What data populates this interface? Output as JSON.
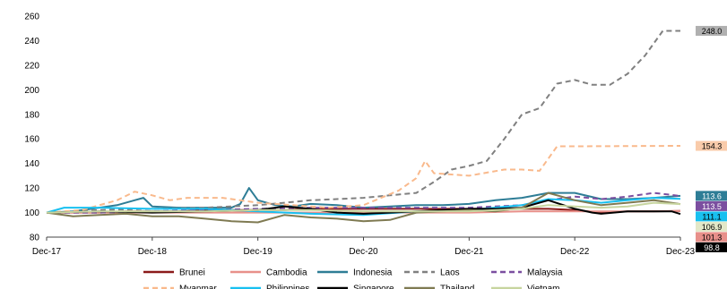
{
  "chart_data": {
    "type": "line",
    "x_ticks": [
      "Dec-17",
      "Dec-18",
      "Dec-19",
      "Dec-20",
      "Dec-21",
      "Dec-22",
      "Dec-23"
    ],
    "ylim": [
      80,
      260
    ],
    "y_ticks": [
      80,
      100,
      120,
      140,
      160,
      180,
      200,
      220,
      240,
      260
    ],
    "grid": false,
    "legend_position": "bottom",
    "series": [
      {
        "name": "Brunei",
        "color": "#8B1A1A",
        "dash": false,
        "x": [
          0,
          3,
          6,
          9,
          12,
          15,
          18,
          21,
          24,
          27,
          30,
          33,
          36,
          39,
          42,
          45,
          48,
          51,
          54,
          57,
          60,
          63,
          66,
          69,
          72
        ],
        "y": [
          100,
          100,
          100,
          101,
          101,
          101,
          102,
          102,
          102,
          102,
          103,
          103,
          103,
          103,
          103,
          103,
          103,
          103,
          103,
          103,
          102,
          100,
          101,
          101,
          101.3
        ]
      },
      {
        "name": "Cambodia",
        "color": "#E8908A",
        "dash": false,
        "x": [
          0,
          6,
          12,
          18,
          24,
          30,
          36,
          42,
          48,
          54,
          60,
          66,
          72
        ],
        "y": [
          100,
          100,
          100,
          100,
          100,
          100,
          100,
          100,
          100,
          101,
          101,
          101,
          101.3
        ]
      },
      {
        "name": "Indonesia",
        "color": "#2E7D96",
        "dash": false,
        "x": [
          0,
          3,
          6,
          8,
          10,
          11,
          12,
          15,
          18,
          21,
          22,
          23,
          24,
          26,
          28,
          30,
          33,
          36,
          39,
          42,
          45,
          48,
          51,
          54,
          57,
          60,
          63,
          66,
          69,
          72
        ],
        "y": [
          100,
          101,
          104,
          106,
          110,
          112,
          105,
          104,
          104,
          104,
          107,
          120,
          110,
          106,
          105,
          107,
          106,
          104,
          105,
          106,
          106,
          107,
          110,
          112,
          116,
          116,
          111,
          111,
          112,
          113.6
        ]
      },
      {
        "name": "Laos",
        "color": "#808080",
        "dash": true,
        "x": [
          0,
          6,
          12,
          18,
          24,
          27,
          30,
          33,
          36,
          39,
          42,
          44,
          46,
          48,
          50,
          52,
          54,
          56,
          58,
          60,
          62,
          64,
          66,
          68,
          70,
          72
        ],
        "y": [
          100,
          102,
          103,
          104,
          106,
          108,
          110,
          111,
          112,
          114,
          116,
          125,
          135,
          138,
          142,
          160,
          180,
          185,
          205,
          208,
          204,
          204,
          213,
          228,
          248,
          248.0
        ]
      },
      {
        "name": "Malaysia",
        "color": "#7B4FA0",
        "dash": true,
        "x": [
          0,
          6,
          12,
          18,
          24,
          30,
          36,
          42,
          48,
          54,
          57,
          60,
          63,
          66,
          69,
          72
        ],
        "y": [
          100,
          100,
          101,
          102,
          103,
          104,
          104,
          104,
          104,
          106,
          110,
          113,
          111,
          113,
          116,
          113.5
        ]
      },
      {
        "name": "Myanmar",
        "color": "#F9B98C",
        "dash": true,
        "x": [
          0,
          4,
          8,
          10,
          12,
          14,
          16,
          20,
          24,
          28,
          32,
          36,
          40,
          42,
          43,
          44,
          48,
          52,
          54,
          56,
          58,
          60,
          72
        ],
        "y": [
          100,
          102,
          110,
          117,
          114,
          110,
          112,
          112,
          108,
          106,
          104,
          106,
          118,
          128,
          142,
          132,
          130,
          135,
          135,
          134,
          154,
          154,
          154.3
        ]
      },
      {
        "name": "Philippines",
        "color": "#18C0F0",
        "dash": false,
        "x": [
          0,
          2,
          6,
          12,
          18,
          24,
          30,
          36,
          42,
          48,
          54,
          57,
          60,
          63,
          66,
          69,
          72
        ],
        "y": [
          100,
          104,
          104,
          103,
          103,
          101,
          99,
          98,
          101,
          102,
          106,
          111,
          110,
          108,
          110,
          112,
          111.1
        ]
      },
      {
        "name": "Singapore",
        "color": "#000000",
        "dash": false,
        "x": [
          0,
          6,
          12,
          18,
          24,
          27,
          30,
          33,
          36,
          39,
          42,
          45,
          48,
          51,
          54,
          57,
          60,
          62,
          63,
          66,
          69,
          71,
          72
        ],
        "y": [
          100,
          101,
          100,
          101,
          102,
          105,
          103,
          100,
          99,
          100,
          101,
          102,
          103,
          103,
          104,
          110,
          103,
          100,
          99,
          101,
          101,
          101,
          98.8
        ]
      },
      {
        "name": "Thailand",
        "color": "#7F7A52",
        "dash": false,
        "x": [
          0,
          3,
          6,
          9,
          12,
          15,
          18,
          21,
          24,
          27,
          30,
          33,
          36,
          39,
          42,
          45,
          48,
          51,
          54,
          57,
          60,
          63,
          66,
          69,
          72
        ],
        "y": [
          100,
          97,
          98,
          99,
          97,
          97,
          95,
          93,
          92,
          98,
          96,
          95,
          93,
          94,
          100,
          101,
          102,
          101,
          104,
          116,
          110,
          106,
          108,
          110,
          106.9
        ]
      },
      {
        "name": "Vietnam",
        "color": "#C7D59F",
        "dash": false,
        "x": [
          0,
          6,
          12,
          18,
          24,
          30,
          36,
          42,
          48,
          54,
          57,
          60,
          63,
          66,
          69,
          72
        ],
        "y": [
          100,
          101,
          101,
          101,
          102,
          102,
          101,
          101,
          101,
          103,
          106,
          105,
          104,
          105,
          108,
          106.9
        ]
      }
    ],
    "end_labels": [
      {
        "text": "248.0",
        "value": 248.0,
        "bg": "#B0B0B0",
        "fg": "#000000"
      },
      {
        "text": "154.3",
        "value": 154.3,
        "bg": "#F9CBAA",
        "fg": "#000000"
      },
      {
        "text": "113.6",
        "value": 113.6,
        "bg": "#2E7D96",
        "fg": "#ffffff"
      },
      {
        "text": "113.5",
        "value": 113.5,
        "bg": "#7B4FA0",
        "fg": "#ffffff"
      },
      {
        "text": "111.1",
        "value": 111.1,
        "bg": "#18C0F0",
        "fg": "#000000"
      },
      {
        "text": "106.9",
        "value": 106.9,
        "bg": "#E3E8C8",
        "fg": "#000000"
      },
      {
        "text": "101.3",
        "value": 101.3,
        "bg": "#E8908A",
        "fg": "#000000"
      },
      {
        "text": "98.8",
        "value": 98.8,
        "bg": "#000000",
        "fg": "#ffffff"
      }
    ]
  }
}
